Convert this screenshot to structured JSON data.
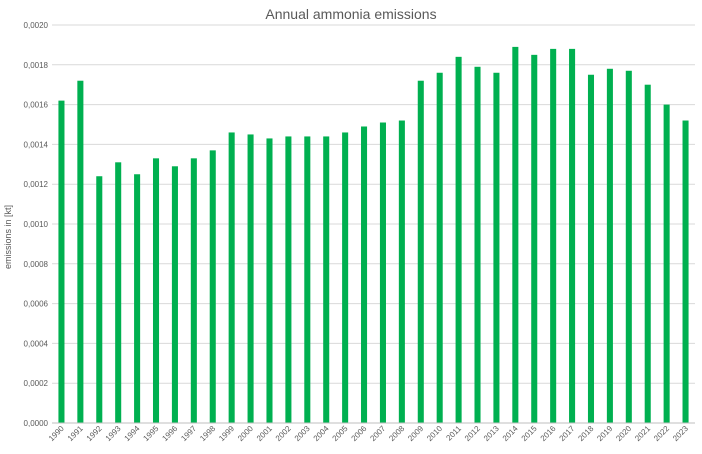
{
  "chart_data": {
    "type": "bar",
    "title": "Annual ammonia emissions",
    "xlabel": "",
    "ylabel": "emissions in [kt]",
    "ylim": [
      0,
      0.002
    ],
    "ytick_values": [
      0,
      0.0002,
      0.0004,
      0.0006,
      0.0008,
      0.001,
      0.0012,
      0.0014,
      0.0016,
      0.0018,
      0.002
    ],
    "ytick_labels": [
      "0,0000",
      "0,0002",
      "0,0004",
      "0,0006",
      "0,0008",
      "0,0010",
      "0,0012",
      "0,0014",
      "0,0016",
      "0,0018",
      "0,0020"
    ],
    "grid": true,
    "legend": "none",
    "color": "#00b050",
    "categories": [
      "1990",
      "1991",
      "1992",
      "1993",
      "1994",
      "1995",
      "1996",
      "1997",
      "1998",
      "1999",
      "2000",
      "2001",
      "2002",
      "2003",
      "2004",
      "2005",
      "2006",
      "2007",
      "2008",
      "2009",
      "2010",
      "2011",
      "2012",
      "2013",
      "2014",
      "2015",
      "2016",
      "2017",
      "2018",
      "2019",
      "2020",
      "2021",
      "2022",
      "2023"
    ],
    "values": [
      0.00162,
      0.00172,
      0.00124,
      0.00131,
      0.00125,
      0.00133,
      0.00129,
      0.00133,
      0.00137,
      0.00146,
      0.00145,
      0.00143,
      0.00144,
      0.00144,
      0.00144,
      0.00146,
      0.00149,
      0.00151,
      0.00152,
      0.00172,
      0.00176,
      0.00184,
      0.00179,
      0.00176,
      0.00189,
      0.00185,
      0.00188,
      0.00188,
      0.00175,
      0.00178,
      0.00177,
      0.0017,
      0.0016,
      0.00152
    ]
  }
}
